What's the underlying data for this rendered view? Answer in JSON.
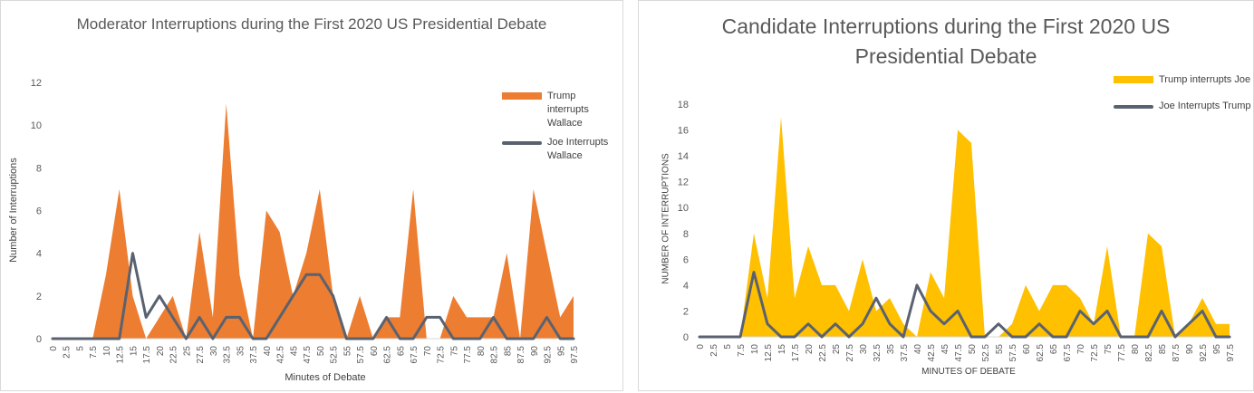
{
  "colors": {
    "trump_left": "#ED7D31",
    "trump_right": "#FFC000",
    "joe_line": "#5A6270",
    "grid": "#d9d9d9",
    "text": "#595959"
  },
  "chart_data": [
    {
      "type": "area",
      "title": "Moderator Interruptions during the First 2020 US Presidential Debate",
      "xlabel": "Minutes of Debate",
      "ylabel": "Number of Interruptions",
      "ylim": [
        0,
        12
      ],
      "yticks": [
        0,
        2,
        4,
        6,
        8,
        10,
        12
      ],
      "grid": false,
      "legend_position": "top-right",
      "x": [
        "0",
        "2.5",
        "5",
        "7.5",
        "10",
        "12.5",
        "15",
        "17.5",
        "20",
        "22.5",
        "25",
        "27.5",
        "30",
        "32.5",
        "35",
        "37.5",
        "40",
        "42.5",
        "45",
        "47.5",
        "50",
        "52.5",
        "55",
        "57.5",
        "60",
        "62.5",
        "65",
        "67.5",
        "70",
        "72.5",
        "75",
        "77.5",
        "80",
        "82.5",
        "85",
        "87.5",
        "90",
        "92.5",
        "95",
        "97.5"
      ],
      "series": [
        {
          "name": "Trump interrupts Wallace",
          "kind": "area",
          "values": [
            0,
            0,
            0,
            0,
            3,
            7,
            2,
            0,
            1,
            2,
            0,
            5,
            1,
            11,
            3,
            0,
            6,
            5,
            2,
            4,
            7,
            2,
            0,
            2,
            0,
            1,
            1,
            7,
            0,
            0,
            2,
            1,
            1,
            1,
            4,
            0,
            7,
            4,
            1,
            2
          ]
        },
        {
          "name": "Joe Interrupts Wallace",
          "kind": "line",
          "values": [
            0,
            0,
            0,
            0,
            0,
            0,
            4,
            1,
            2,
            1,
            0,
            1,
            0,
            1,
            1,
            0,
            0,
            1,
            2,
            3,
            3,
            2,
            0,
            0,
            0,
            1,
            0,
            0,
            1,
            1,
            0,
            0,
            0,
            1,
            0,
            0,
            0,
            1,
            0,
            0
          ]
        }
      ]
    },
    {
      "type": "area",
      "title": "Candidate Interruptions during the First 2020 US Presidential Debate",
      "xlabel": "MINUTES OF DEBATE",
      "ylabel": "NUMBER OF INTERRUPTIONS",
      "ylim": [
        0,
        18
      ],
      "yticks": [
        0,
        2,
        4,
        6,
        8,
        10,
        12,
        14,
        16,
        18
      ],
      "grid": false,
      "legend_position": "top-right",
      "x": [
        "0",
        "2.5",
        "5",
        "7.5",
        "10",
        "12.5",
        "15",
        "17.5",
        "20",
        "22.5",
        "25",
        "27.5",
        "30",
        "32.5",
        "35",
        "37.5",
        "40",
        "42.5",
        "45",
        "47.5",
        "50",
        "52.5",
        "55",
        "57.5",
        "60",
        "62.5",
        "65",
        "67.5",
        "70",
        "72.5",
        "75",
        "77.5",
        "80",
        "82.5",
        "85",
        "87.5",
        "90",
        "92.5",
        "95",
        "97.5"
      ],
      "series": [
        {
          "name": "Trump interrupts Joe",
          "kind": "area",
          "values": [
            0,
            0,
            0,
            0,
            8,
            3,
            17,
            3,
            7,
            4,
            4,
            2,
            6,
            2,
            3,
            1,
            0,
            5,
            3,
            16,
            15,
            0,
            0,
            1,
            4,
            2,
            4,
            4,
            3,
            1,
            7,
            0,
            0,
            8,
            7,
            0,
            1,
            3,
            1,
            1
          ]
        },
        {
          "name": "Joe Interrupts Trump",
          "kind": "line",
          "values": [
            0,
            0,
            0,
            0,
            5,
            1,
            0,
            0,
            1,
            0,
            1,
            0,
            1,
            3,
            1,
            0,
            4,
            2,
            1,
            2,
            0,
            0,
            1,
            0,
            0,
            1,
            0,
            0,
            2,
            1,
            2,
            0,
            0,
            0,
            2,
            0,
            1,
            2,
            0,
            0
          ]
        }
      ]
    }
  ]
}
